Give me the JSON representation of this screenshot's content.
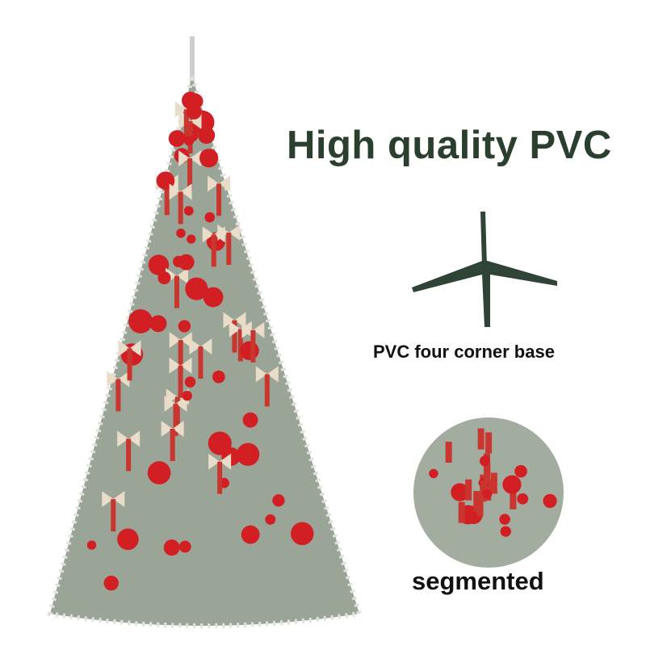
{
  "product": {
    "headline": "High quality PVC",
    "base_caption": "PVC four corner base",
    "segment_caption": "segmented"
  },
  "colors": {
    "headline": "#2b3f2e",
    "ornament_red": "#d11f24",
    "ribbon": "#c9362f",
    "bow": "#e9dcc8",
    "foliage": "#8e9a8c",
    "stand": "#2f4336"
  }
}
